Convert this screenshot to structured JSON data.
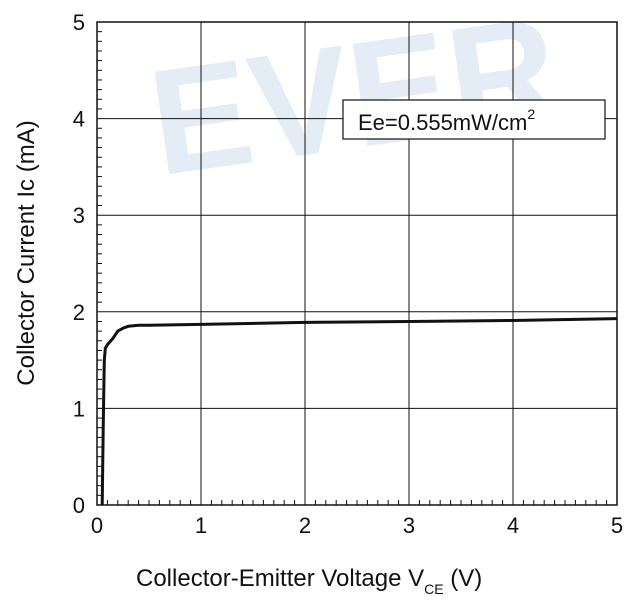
{
  "watermark": "EVER",
  "chart_data": {
    "type": "line",
    "xlabel": "Collector-Emitter Voltage V",
    "xlabel_sub": "CE",
    "xlabel_suffix": " (V)",
    "ylabel": "Collector Current Ic (mA)",
    "xlim": [
      0,
      5
    ],
    "ylim": [
      0,
      5
    ],
    "x_ticks": [
      "0",
      "1",
      "2",
      "3",
      "4",
      "5"
    ],
    "y_ticks": [
      "0",
      "1",
      "2",
      "3",
      "4",
      "5"
    ],
    "grid": true,
    "legend_placement": "top-right",
    "annotation": {
      "text": "Ee=0.555mW/cm",
      "superscript": "2"
    },
    "series": [
      {
        "color": "#111111",
        "x": [
          0.05,
          0.06,
          0.07,
          0.08,
          0.1,
          0.15,
          0.2,
          0.25,
          0.3,
          0.4,
          0.5,
          1.0,
          2.0,
          3.0,
          4.0,
          5.0
        ],
        "y": [
          0.0,
          0.8,
          1.5,
          1.62,
          1.66,
          1.72,
          1.8,
          1.83,
          1.85,
          1.86,
          1.86,
          1.87,
          1.89,
          1.9,
          1.91,
          1.93
        ]
      }
    ]
  }
}
